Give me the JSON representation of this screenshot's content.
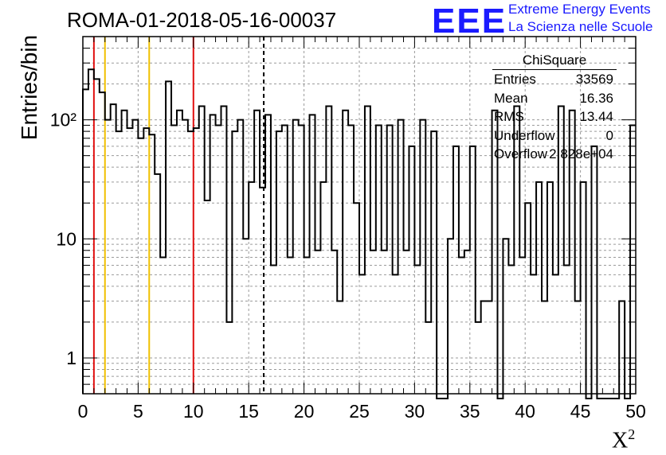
{
  "header": {
    "title": "ROMA-01-2018-05-16-00037",
    "logo_text": "EEE",
    "org_line1": "Extreme Energy Events",
    "org_line2": "La Scienza nelle Scuole"
  },
  "stats_box": {
    "title": "ChiSquare",
    "rows": [
      {
        "key": "Entries",
        "value": "33569"
      },
      {
        "key": "Mean",
        "value": "16.36"
      },
      {
        "key": "RMS",
        "value": "13.44"
      },
      {
        "key": "Underflow",
        "value": "0"
      },
      {
        "key": "Overflow",
        "value": "2.828e+04"
      }
    ]
  },
  "chart_data": {
    "type": "bar",
    "style": "step-histogram",
    "xlabel": "χ²",
    "ylabel": "Entries/bin",
    "xlim": [
      0,
      50
    ],
    "ylim": [
      0.5,
      500
    ],
    "yscale": "log",
    "bin_width": 0.5,
    "x_ticks": [
      "0",
      "5",
      "10",
      "15",
      "20",
      "25",
      "30",
      "35",
      "40",
      "45",
      "50"
    ],
    "y_ticks": [
      "1",
      "10",
      "10²"
    ],
    "grid": true,
    "values": [
      180,
      265,
      220,
      170,
      100,
      135,
      80,
      120,
      85,
      100,
      70,
      85,
      75,
      35,
      7,
      210,
      90,
      120,
      100,
      80,
      85,
      130,
      21,
      110,
      90,
      130,
      2,
      80,
      100,
      10,
      30,
      120,
      27,
      110,
      6,
      80,
      90,
      7,
      100,
      90,
      7,
      110,
      8,
      30,
      130,
      8,
      3,
      120,
      90,
      20,
      5,
      130,
      8,
      90,
      8,
      90,
      5,
      100,
      8,
      60,
      6,
      100,
      2,
      80,
      0,
      0,
      10,
      60,
      7,
      8,
      60,
      2,
      3,
      3,
      120,
      0,
      10,
      6,
      130,
      7,
      20,
      5,
      30,
      3,
      30,
      5,
      130,
      6,
      120,
      3,
      30,
      0,
      60,
      0,
      0,
      0,
      0,
      3,
      0,
      90
    ],
    "vertical_lines": [
      {
        "x": 1,
        "color": "#e01010",
        "style": "solid"
      },
      {
        "x": 2,
        "color": "#f0c000",
        "style": "solid"
      },
      {
        "x": 6,
        "color": "#f0c000",
        "style": "solid"
      },
      {
        "x": 10,
        "color": "#e01010",
        "style": "solid"
      },
      {
        "x": 16.36,
        "color": "#000000",
        "style": "dashed"
      }
    ]
  }
}
